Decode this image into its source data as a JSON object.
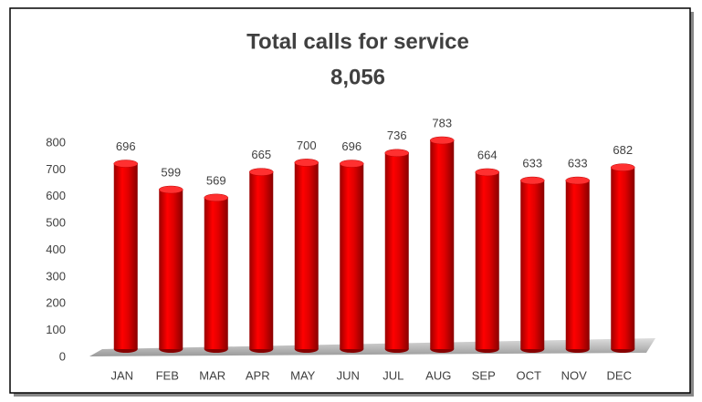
{
  "chart_data": {
    "type": "bar",
    "title": "Total calls for service",
    "subtitle": "8,056",
    "categories": [
      "JAN",
      "FEB",
      "MAR",
      "APR",
      "MAY",
      "JUN",
      "JUL",
      "AUG",
      "SEP",
      "OCT",
      "NOV",
      "DEC"
    ],
    "values": [
      696,
      599,
      569,
      665,
      700,
      696,
      736,
      783,
      664,
      633,
      633,
      682
    ],
    "color": "#ff0000",
    "ylim": [
      0,
      800
    ],
    "yticks": [
      0,
      100,
      200,
      300,
      400,
      500,
      600,
      700,
      800
    ],
    "grid": false
  }
}
